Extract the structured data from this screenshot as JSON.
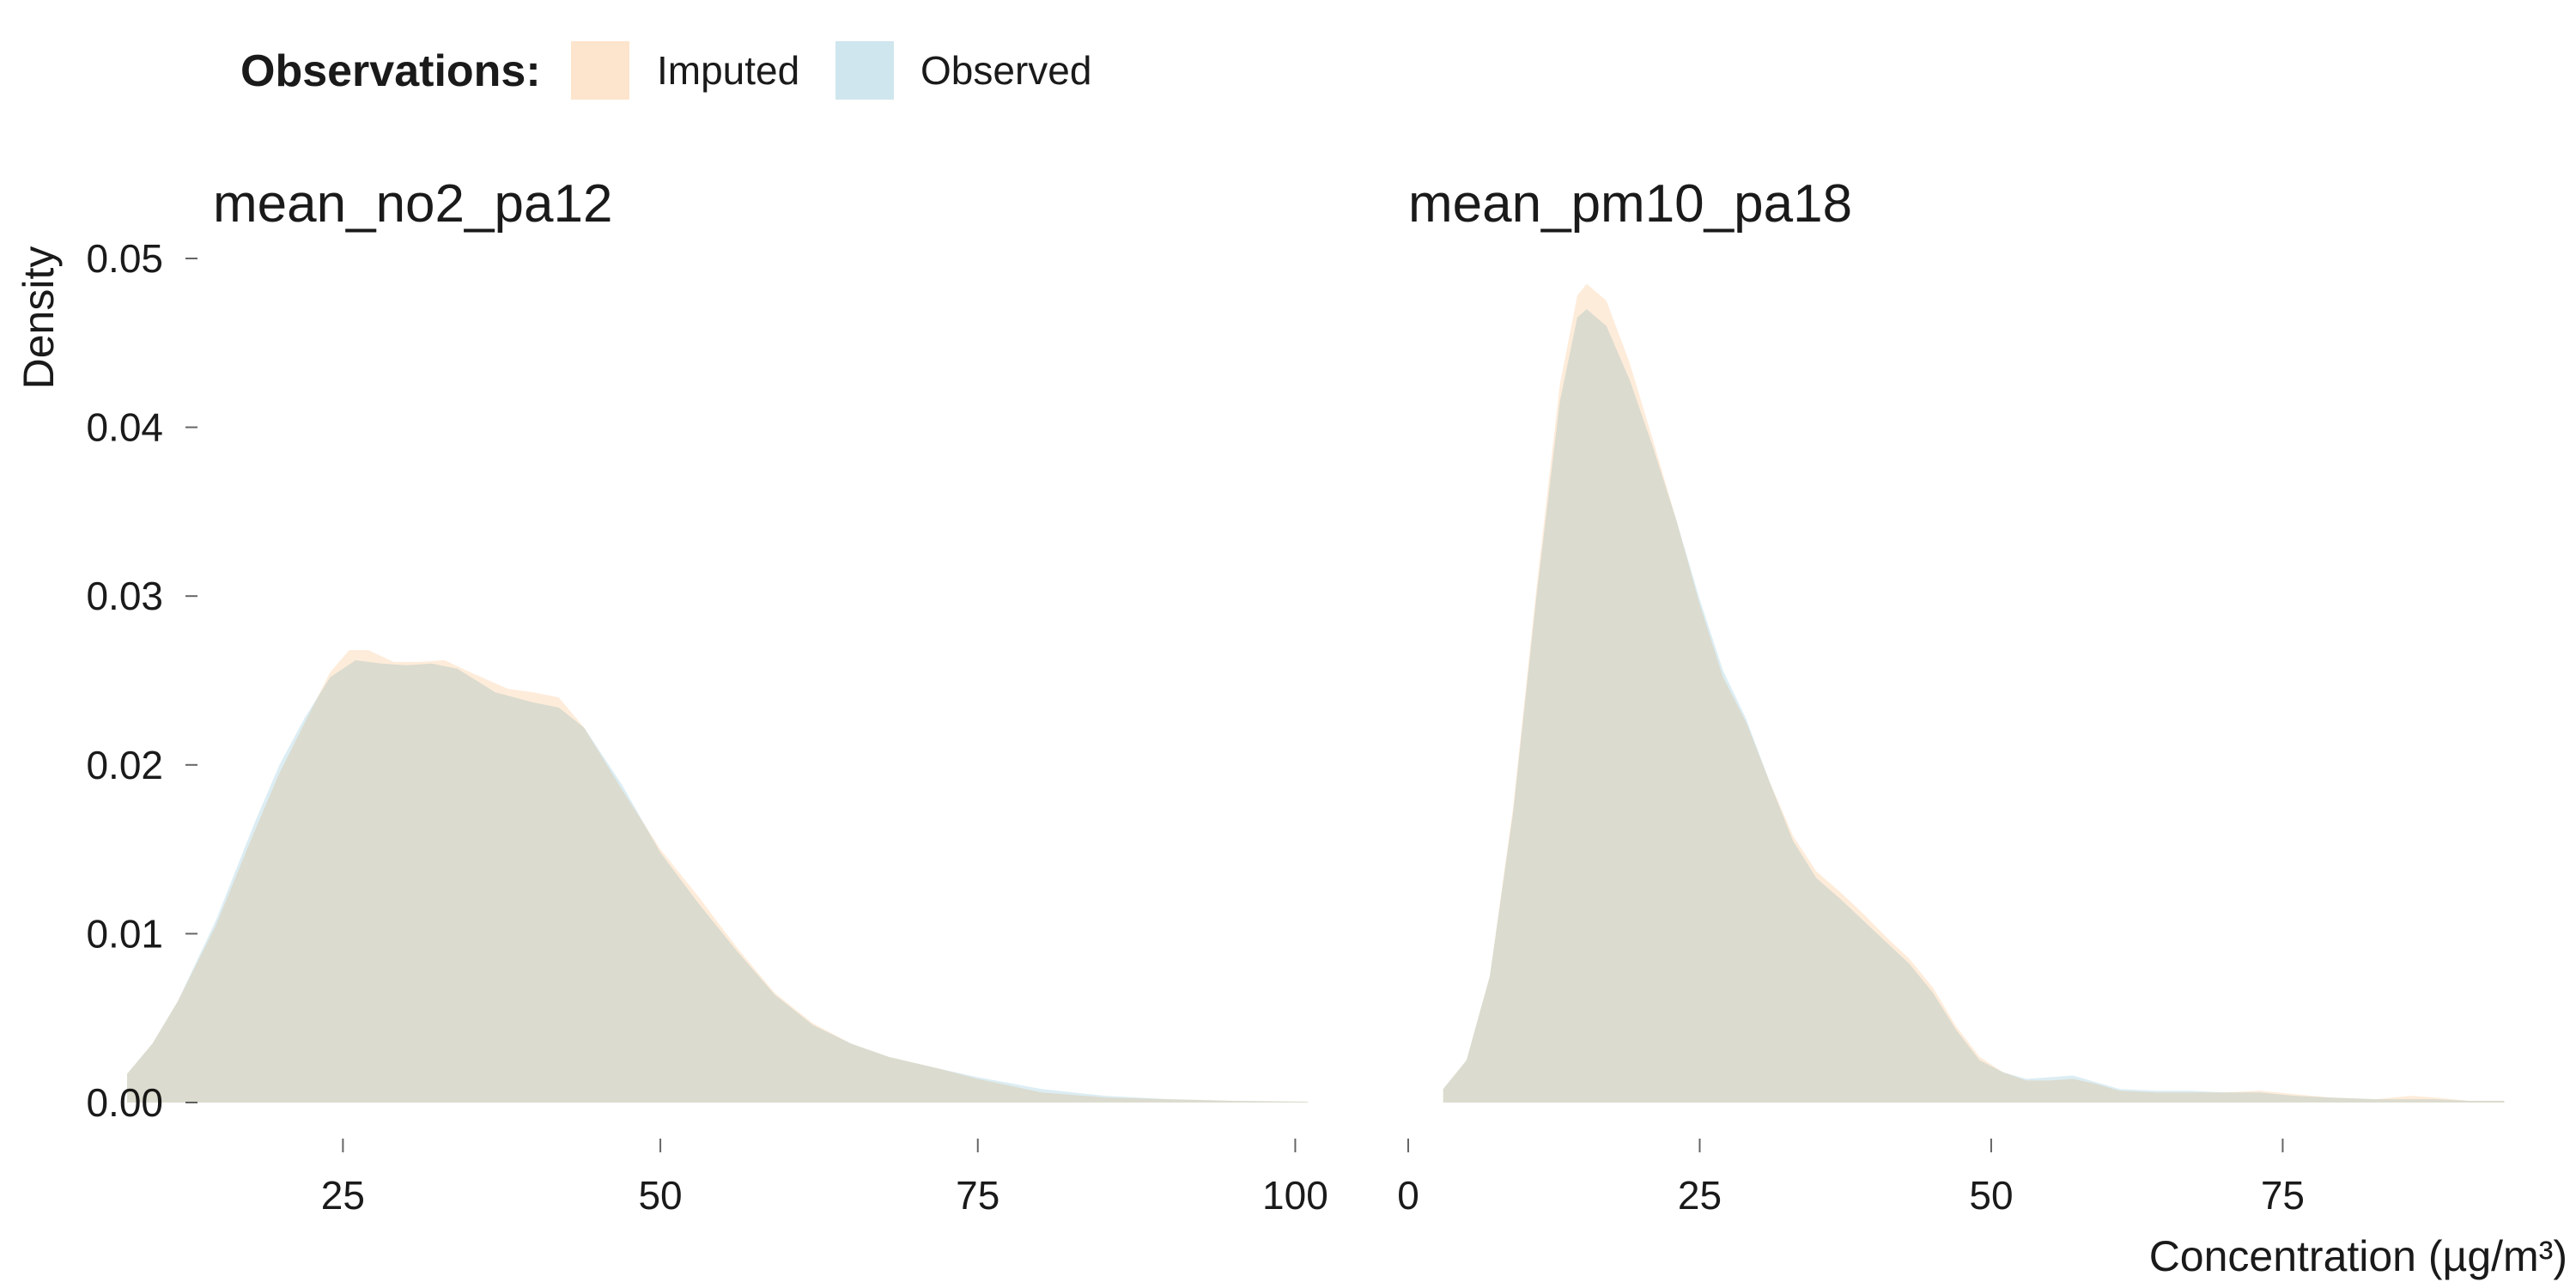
{
  "legend": {
    "title": "Observations:",
    "items": [
      {
        "label": "Imputed",
        "color": "#FDE4CC"
      },
      {
        "label": "Observed",
        "color": "#CFE6EE"
      }
    ]
  },
  "axes": {
    "ylabel": "Density",
    "xlabel": "Concentration (µg/m³)"
  },
  "chart_data": [
    {
      "type": "area",
      "title": "mean_no2_pa12",
      "xlim": [
        8,
        102
      ],
      "ylim": [
        0,
        0.05
      ],
      "x_ticks": [
        25,
        50,
        75,
        100
      ],
      "y_ticks": [
        "0.00",
        "0.01",
        "0.02",
        "0.03",
        "0.04",
        "0.05"
      ],
      "grid": false,
      "series": [
        {
          "name": "Imputed",
          "color": "#FDE4CC",
          "points": [
            [
              8,
              0.0017
            ],
            [
              10,
              0.0035
            ],
            [
              12,
              0.006
            ],
            [
              15,
              0.0105
            ],
            [
              18,
              0.016
            ],
            [
              20,
              0.0195
            ],
            [
              22,
              0.0225
            ],
            [
              24,
              0.0255
            ],
            [
              25.5,
              0.0268
            ],
            [
              27,
              0.0268
            ],
            [
              29,
              0.0261
            ],
            [
              31,
              0.0261
            ],
            [
              33,
              0.0262
            ],
            [
              35,
              0.0255
            ],
            [
              38,
              0.0245
            ],
            [
              40,
              0.0243
            ],
            [
              42,
              0.024
            ],
            [
              44,
              0.0222
            ],
            [
              47,
              0.0185
            ],
            [
              50,
              0.015
            ],
            [
              53,
              0.0122
            ],
            [
              56,
              0.0092
            ],
            [
              59,
              0.0065
            ],
            [
              62,
              0.0047
            ],
            [
              65,
              0.0035
            ],
            [
              68,
              0.0027
            ],
            [
              72,
              0.002
            ],
            [
              75,
              0.0014
            ],
            [
              80,
              0.0006
            ],
            [
              85,
              0.0003
            ],
            [
              90,
              0.0002
            ],
            [
              95,
              0.0001
            ],
            [
              101,
              5e-05
            ]
          ]
        },
        {
          "name": "Observed",
          "color": "#CFE6EE",
          "points": [
            [
              8,
              0.0017
            ],
            [
              10,
              0.0035
            ],
            [
              12,
              0.006
            ],
            [
              15,
              0.0108
            ],
            [
              18,
              0.0165
            ],
            [
              20,
              0.02
            ],
            [
              22,
              0.0228
            ],
            [
              24,
              0.0252
            ],
            [
              26,
              0.0262
            ],
            [
              28,
              0.026
            ],
            [
              30,
              0.0259
            ],
            [
              32,
              0.026
            ],
            [
              34,
              0.0257
            ],
            [
              37,
              0.0243
            ],
            [
              40,
              0.0237
            ],
            [
              42,
              0.0234
            ],
            [
              44,
              0.0222
            ],
            [
              47,
              0.0188
            ],
            [
              50,
              0.0148
            ],
            [
              53,
              0.0118
            ],
            [
              56,
              0.009
            ],
            [
              59,
              0.0064
            ],
            [
              62,
              0.0046
            ],
            [
              65,
              0.0035
            ],
            [
              68,
              0.0027
            ],
            [
              72,
              0.002
            ],
            [
              75,
              0.0015
            ],
            [
              80,
              0.0008
            ],
            [
              85,
              0.0004
            ],
            [
              90,
              0.0002
            ],
            [
              95,
              0.0001
            ],
            [
              101,
              5e-05
            ]
          ]
        }
      ]
    },
    {
      "type": "area",
      "title": "mean_pm10_pa18",
      "xlim": [
        0,
        95
      ],
      "ylim": [
        0,
        0.05
      ],
      "x_ticks": [
        0,
        25,
        50,
        75
      ],
      "grid": false,
      "series": [
        {
          "name": "Imputed",
          "color": "#FDE4CC",
          "points": [
            [
              3,
              0.0008
            ],
            [
              5,
              0.0025
            ],
            [
              7,
              0.0075
            ],
            [
              9,
              0.0175
            ],
            [
              11,
              0.0305
            ],
            [
              13,
              0.0425
            ],
            [
              14.5,
              0.0478
            ],
            [
              15.3,
              0.0485
            ],
            [
              17,
              0.0475
            ],
            [
              19,
              0.0438
            ],
            [
              21,
              0.0392
            ],
            [
              23,
              0.0345
            ],
            [
              25,
              0.0295
            ],
            [
              27,
              0.0252
            ],
            [
              29,
              0.0225
            ],
            [
              31,
              0.019
            ],
            [
              33,
              0.0158
            ],
            [
              35,
              0.0137
            ],
            [
              37,
              0.0125
            ],
            [
              39,
              0.0112
            ],
            [
              41,
              0.0098
            ],
            [
              43,
              0.0085
            ],
            [
              45,
              0.0068
            ],
            [
              47,
              0.0045
            ],
            [
              49,
              0.0027
            ],
            [
              51,
              0.0018
            ],
            [
              53,
              0.0013
            ],
            [
              55,
              0.0013
            ],
            [
              57,
              0.0014
            ],
            [
              59,
              0.0011
            ],
            [
              61,
              0.0007
            ],
            [
              64,
              0.0006
            ],
            [
              67,
              0.0006
            ],
            [
              70,
              0.0006
            ],
            [
              73,
              0.0007
            ],
            [
              76,
              0.0005
            ],
            [
              79,
              0.0003
            ],
            [
              83,
              0.0002
            ],
            [
              86,
              0.0004
            ],
            [
              88,
              0.0003
            ],
            [
              91,
              0.0001
            ],
            [
              94,
              0.0001
            ]
          ]
        },
        {
          "name": "Observed",
          "color": "#CFE6EE",
          "points": [
            [
              3,
              0.0008
            ],
            [
              5,
              0.0025
            ],
            [
              7,
              0.0075
            ],
            [
              9,
              0.0172
            ],
            [
              11,
              0.03
            ],
            [
              13,
              0.0415
            ],
            [
              14.5,
              0.0465
            ],
            [
              15.3,
              0.047
            ],
            [
              17,
              0.046
            ],
            [
              19,
              0.0428
            ],
            [
              21,
              0.0388
            ],
            [
              23,
              0.0345
            ],
            [
              25,
              0.0298
            ],
            [
              27,
              0.0256
            ],
            [
              29,
              0.0227
            ],
            [
              31,
              0.019
            ],
            [
              33,
              0.0155
            ],
            [
              35,
              0.0133
            ],
            [
              37,
              0.0121
            ],
            [
              39,
              0.0108
            ],
            [
              41,
              0.0095
            ],
            [
              43,
              0.0082
            ],
            [
              45,
              0.0065
            ],
            [
              47,
              0.0043
            ],
            [
              49,
              0.0025
            ],
            [
              51,
              0.0018
            ],
            [
              53,
              0.0014
            ],
            [
              55,
              0.0015
            ],
            [
              57,
              0.0016
            ],
            [
              59,
              0.0012
            ],
            [
              61,
              0.0008
            ],
            [
              64,
              0.0007
            ],
            [
              67,
              0.0007
            ],
            [
              70,
              0.0006
            ],
            [
              73,
              0.0006
            ],
            [
              76,
              0.0004
            ],
            [
              79,
              0.0003
            ],
            [
              83,
              0.0002
            ],
            [
              86,
              0.0002
            ],
            [
              88,
              0.0002
            ],
            [
              91,
              0.0001
            ],
            [
              94,
              0.0001
            ]
          ]
        }
      ]
    }
  ]
}
